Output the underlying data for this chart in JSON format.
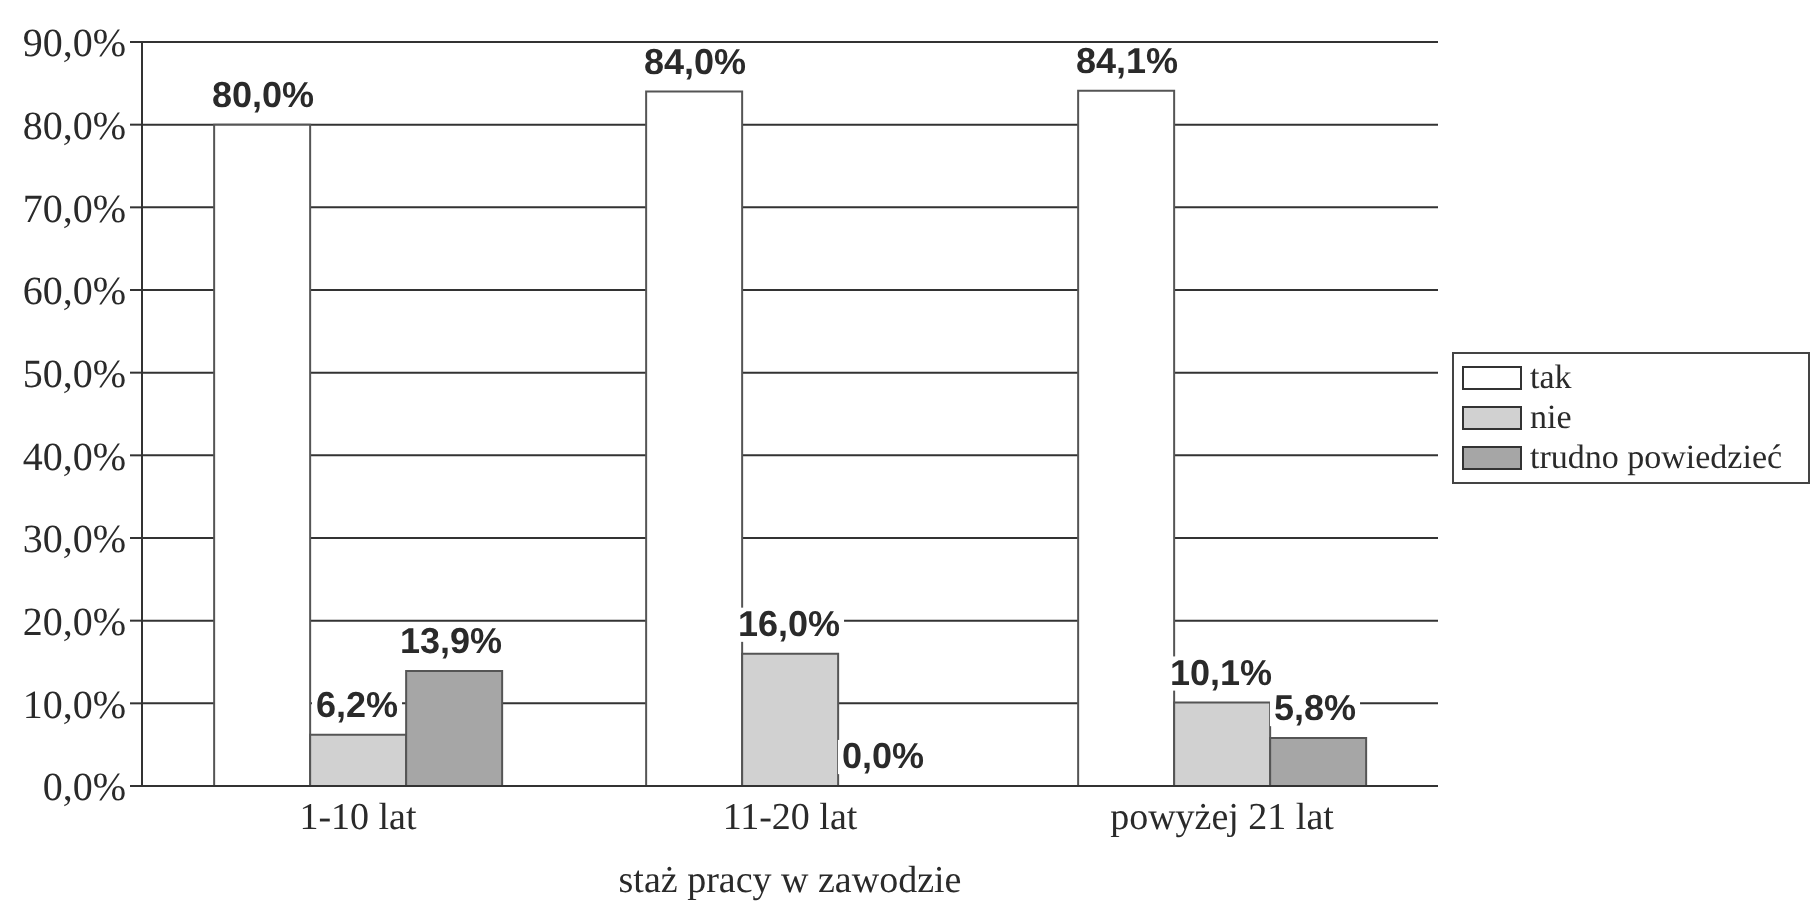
{
  "chart_data": {
    "type": "bar",
    "xlabel": "staż pracy w zawodzie",
    "categories": [
      "1-10 lat",
      "11-20 lat",
      "powyżej 21 lat"
    ],
    "series": [
      {
        "name": "tak",
        "color": "#ffffff",
        "values": [
          80.0,
          84.0,
          84.1
        ],
        "value_labels": [
          "80,0%",
          "84,0%",
          "84,1%"
        ]
      },
      {
        "name": "nie",
        "color": "#d1d1d1",
        "values": [
          6.2,
          16.0,
          10.1
        ],
        "value_labels": [
          "6,2%",
          "16,0%",
          "10,1%"
        ]
      },
      {
        "name": "trudno powiedzieć",
        "color": "#a6a6a6",
        "values": [
          13.9,
          0.0,
          5.8
        ],
        "value_labels": [
          "13,9%",
          "0,0%",
          "5,8%"
        ]
      }
    ],
    "ylim": [
      0,
      90
    ],
    "yticks": [
      {
        "value": 0,
        "label": "0,0%"
      },
      {
        "value": 10,
        "label": "10,0%"
      },
      {
        "value": 20,
        "label": "20,0%"
      },
      {
        "value": 30,
        "label": "30,0%"
      },
      {
        "value": 40,
        "label": "40,0%"
      },
      {
        "value": 50,
        "label": "50,0%"
      },
      {
        "value": 60,
        "label": "60,0%"
      },
      {
        "value": 70,
        "label": "70,0%"
      },
      {
        "value": 80,
        "label": "80,0%"
      },
      {
        "value": 90,
        "label": "90,0%"
      }
    ],
    "grid": "y",
    "legend": "right"
  }
}
